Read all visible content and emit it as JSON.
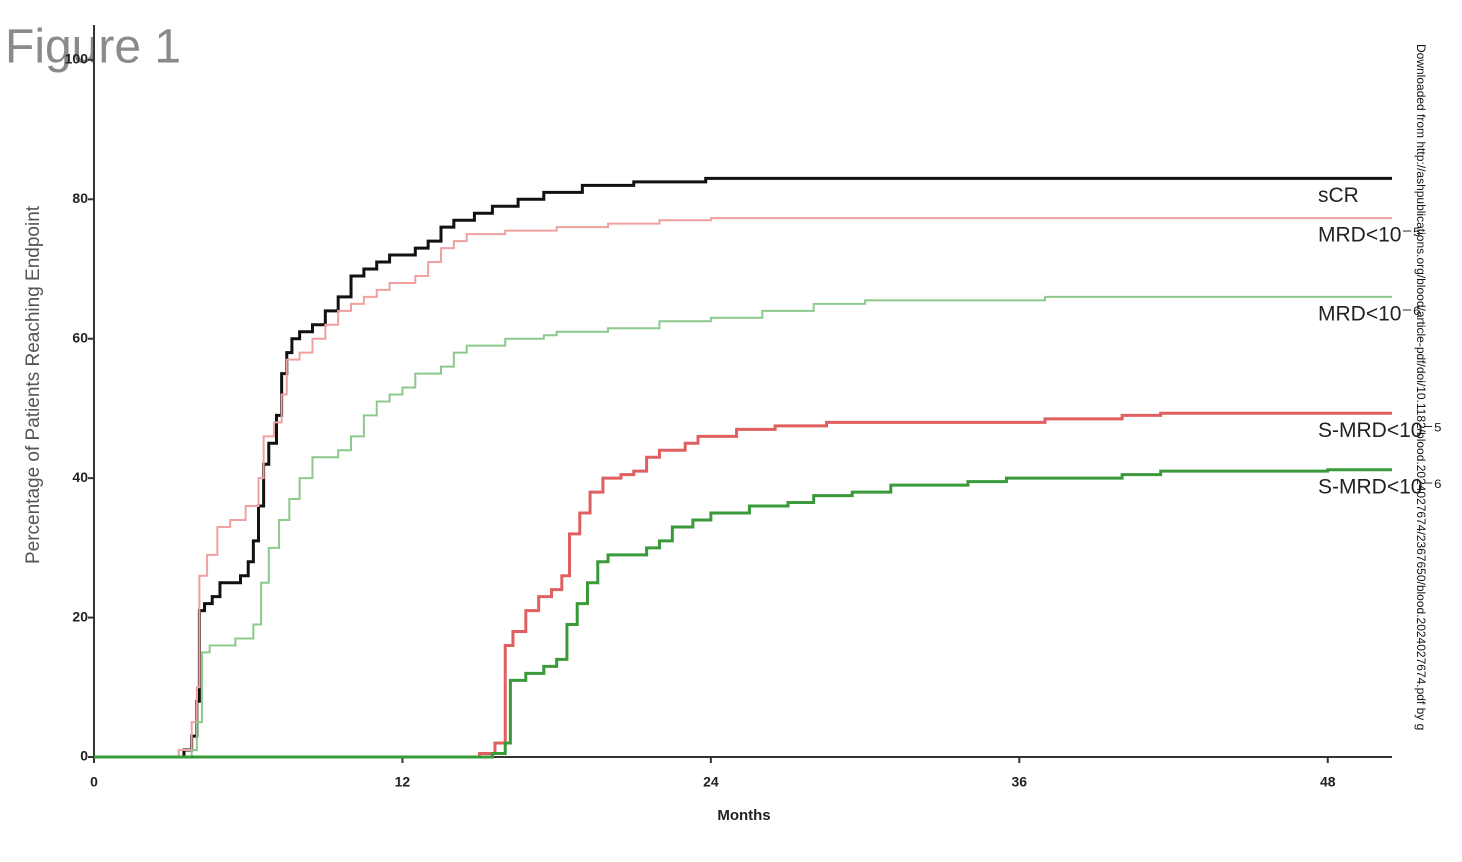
{
  "chart_data": {
    "type": "step",
    "title": "Figure 1",
    "y_label": "Percentage of Patients Reaching Endpoint",
    "x_label": "Months",
    "watermark": "Downloaded from http://ashpublications.org/blood/article-pdf/doi/10.1182/blood.2024027674/2367650/blood.2024027674.pdf by g",
    "xlim": [
      0,
      50.5
    ],
    "xticks": [
      0,
      12,
      24,
      36,
      48
    ],
    "ylim": [
      0,
      105
    ],
    "yticks": [
      0,
      20,
      40,
      60,
      80,
      100
    ],
    "series": [
      {
        "name": "sCR",
        "color": "#111111",
        "width": 3,
        "x": [
          0,
          3,
          3.5,
          3.8,
          4.0,
          4.1,
          4.3,
          4.6,
          4.9,
          5.7,
          6.0,
          6.2,
          6.4,
          6.6,
          6.8,
          7.1,
          7.3,
          7.5,
          7.7,
          8.0,
          8.5,
          9.0,
          9.5,
          10.0,
          10.5,
          11.0,
          11.5,
          12.5,
          13.0,
          13.5,
          14.0,
          14.8,
          15.5,
          16.5,
          17.5,
          19,
          21,
          23.8,
          50.5
        ],
        "values": [
          0,
          0,
          1,
          3,
          8,
          21,
          22,
          23,
          25,
          26,
          28,
          31,
          36,
          42,
          45,
          49,
          55,
          58,
          60,
          61,
          62,
          64,
          66,
          69,
          70,
          71,
          72,
          73,
          74,
          76,
          77,
          78,
          79,
          80,
          81,
          82,
          82.5,
          83,
          83
        ]
      },
      {
        "name": "MRD<10⁻⁵",
        "color": "#f0a0a0",
        "width": 2,
        "x": [
          0,
          3.3,
          3.8,
          4.0,
          4.1,
          4.4,
          4.8,
          5.3,
          5.9,
          6.4,
          6.6,
          7.0,
          7.3,
          7.5,
          8,
          8.5,
          9.0,
          9.5,
          10,
          10.5,
          11,
          11.5,
          12.5,
          13,
          13.5,
          14,
          14.5,
          16,
          18,
          20,
          22,
          24,
          50.5
        ],
        "values": [
          0,
          1,
          5,
          10,
          26,
          29,
          33,
          34,
          36,
          40,
          46,
          48,
          52,
          57,
          58,
          60,
          62,
          64,
          65,
          66,
          67,
          68,
          69,
          71,
          73,
          74,
          75,
          75.5,
          76,
          76.5,
          77,
          77.3,
          77.3
        ]
      },
      {
        "name": "MRD<10⁻⁶",
        "color": "#8cc98c",
        "width": 2,
        "x": [
          0,
          3.8,
          4.0,
          4.2,
          4.5,
          5.5,
          6.2,
          6.5,
          6.8,
          7.2,
          7.6,
          8.0,
          8.5,
          9.5,
          10,
          10.5,
          11,
          11.5,
          12,
          12.5,
          13.5,
          14,
          14.5,
          16,
          17.5,
          18,
          20,
          22,
          24,
          26,
          28,
          30,
          37,
          50.5
        ],
        "values": [
          0,
          1,
          5,
          15,
          16,
          17,
          19,
          25,
          30,
          34,
          37,
          40,
          43,
          44,
          46,
          49,
          51,
          52,
          53,
          55,
          56,
          58,
          59,
          60,
          60.5,
          61,
          61.5,
          62.5,
          63,
          64,
          65,
          65.5,
          66,
          66
        ]
      },
      {
        "name": "S-MRD<10⁻⁵",
        "color": "#e06060",
        "width": 3,
        "x": [
          0,
          15,
          15.6,
          16.0,
          16.3,
          16.8,
          17.3,
          17.8,
          18.2,
          18.5,
          18.9,
          19.3,
          19.8,
          20.5,
          21,
          21.5,
          22,
          23,
          23.5,
          25,
          26.5,
          28.5,
          37,
          40,
          41.5,
          50.5
        ],
        "values": [
          0,
          0.5,
          2,
          16,
          18,
          21,
          23,
          24,
          26,
          32,
          35,
          38,
          40,
          40.5,
          41,
          43,
          44,
          45,
          46,
          47,
          47.5,
          48,
          48.5,
          49,
          49.3,
          49.3
        ]
      },
      {
        "name": "S-MRD<10⁻⁶",
        "color": "#3a9a3a",
        "width": 3,
        "x": [
          0,
          15.5,
          16.0,
          16.2,
          16.8,
          17.5,
          18.0,
          18.4,
          18.8,
          19.2,
          19.6,
          20,
          21.5,
          22,
          22.5,
          23.3,
          24,
          25.5,
          27,
          28,
          29.5,
          31,
          34,
          35.5,
          40,
          41.5,
          48,
          50.5
        ],
        "values": [
          0,
          0.5,
          2,
          11,
          12,
          13,
          14,
          19,
          22,
          25,
          28,
          29,
          30,
          31,
          33,
          34,
          35,
          36,
          36.5,
          37.5,
          38,
          39,
          39.5,
          40,
          40.5,
          41,
          41.2,
          41.2
        ]
      }
    ]
  }
}
